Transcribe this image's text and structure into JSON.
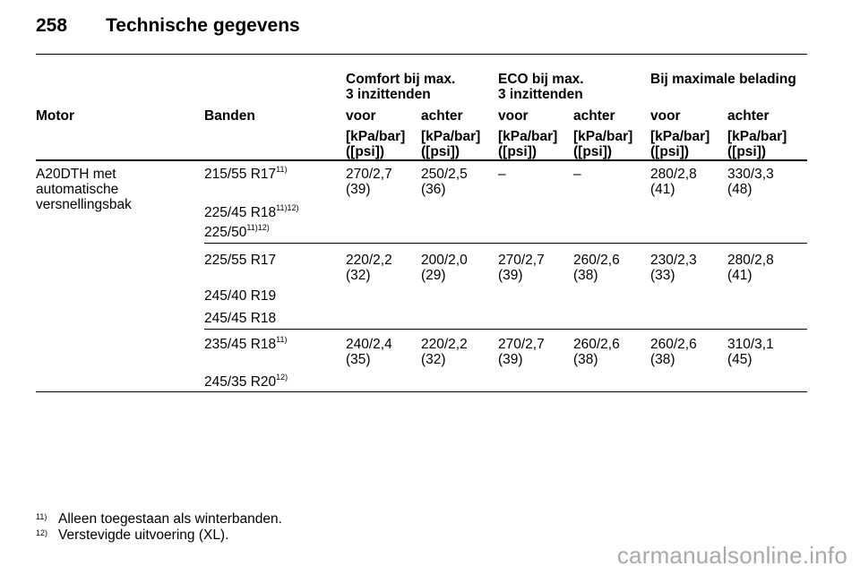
{
  "header": {
    "page_number": "258",
    "title": "Technische gegevens"
  },
  "groups": [
    "Comfort bij max.\n3 inzittenden",
    "ECO bij max.\n3 inzittenden",
    "Bij maximale belading"
  ],
  "columns": {
    "motor": "Motor",
    "tyres": "Banden",
    "front": "voor",
    "rear": "achter",
    "unit": "[kPa/bar]\n([psi])"
  },
  "motor_name": "A20DTH met\nautomatische\nversnellingsbak",
  "rows": [
    {
      "tyres": [
        {
          "t": "215/55 R17",
          "sup": "11)"
        },
        {
          "t": "225/45 R18",
          "sup": "11)12)"
        },
        {
          "t": "225/50",
          "sup": "11)12)"
        }
      ],
      "values": [
        "270/2,7\n(39)",
        "250/2,5\n(36)",
        "–",
        "–",
        "280/2,8\n(41)",
        "330/3,3\n(48)"
      ]
    },
    {
      "tyres": [
        {
          "t": "225/55 R17",
          "sup": ""
        },
        {
          "t": "245/40 R19",
          "sup": ""
        },
        {
          "t": "245/45 R18",
          "sup": ""
        }
      ],
      "values": [
        "220/2,2\n(32)",
        "200/2,0\n(29)",
        "270/2,7\n(39)",
        "260/2,6\n(38)",
        "230/2,3\n(33)",
        "280/2,8\n(41)"
      ]
    },
    {
      "tyres": [
        {
          "t": "235/45 R18",
          "sup": "11)"
        },
        {
          "t": "245/35 R20",
          "sup": "12)"
        }
      ],
      "values": [
        "240/2,4\n(35)",
        "220/2,2\n(32)",
        "270/2,7\n(39)",
        "260/2,6\n(38)",
        "260/2,6\n(38)",
        "310/3,1\n(45)"
      ]
    }
  ],
  "footnotes": [
    {
      "mark": "11)",
      "text": "Alleen toegestaan als winterbanden."
    },
    {
      "mark": "12)",
      "text": "Verstevigde uitvoering (XL)."
    }
  ],
  "watermark": "carmanualsonline.info"
}
